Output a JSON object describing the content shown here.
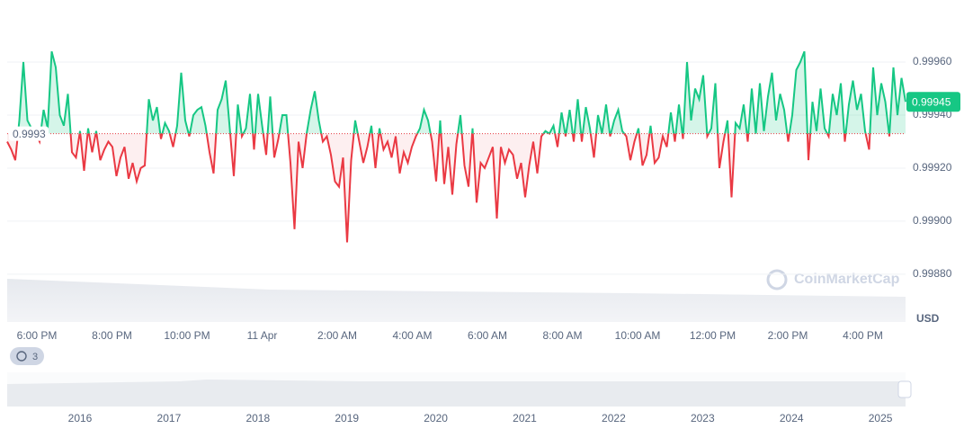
{
  "chart_data": {
    "type": "line",
    "values": [
      0.9993,
      0.99927,
      0.99923,
      0.99938,
      0.9996,
      0.99938,
      0.99935,
      0.99933,
      0.9993,
      0.99942,
      0.99935,
      0.99964,
      0.99958,
      0.9994,
      0.99936,
      0.99948,
      0.99926,
      0.99924,
      0.99934,
      0.99919,
      0.99935,
      0.99926,
      0.99934,
      0.99923,
      0.99927,
      0.9993,
      0.99928,
      0.99917,
      0.99924,
      0.99928,
      0.99916,
      0.99922,
      0.99915,
      0.9992,
      0.99921,
      0.99946,
      0.99938,
      0.99943,
      0.99931,
      0.99937,
      0.99934,
      0.99928,
      0.99936,
      0.99956,
      0.99938,
      0.99932,
      0.9994,
      0.99942,
      0.99943,
      0.99936,
      0.99926,
      0.99918,
      0.99942,
      0.99946,
      0.99953,
      0.99935,
      0.99917,
      0.99944,
      0.99932,
      0.99935,
      0.99948,
      0.99927,
      0.99948,
      0.99936,
      0.99925,
      0.99947,
      0.99924,
      0.99931,
      0.9994,
      0.9994,
      0.99922,
      0.99897,
      0.9993,
      0.9992,
      0.99933,
      0.99942,
      0.99949,
      0.99938,
      0.9993,
      0.99932,
      0.99925,
      0.99915,
      0.99913,
      0.99924,
      0.99892,
      0.99923,
      0.99938,
      0.9993,
      0.99922,
      0.99928,
      0.99936,
      0.9992,
      0.99935,
      0.99927,
      0.9993,
      0.99924,
      0.99932,
      0.99918,
      0.99926,
      0.99922,
      0.99928,
      0.99932,
      0.99935,
      0.99942,
      0.99938,
      0.9993,
      0.99915,
      0.99938,
      0.99914,
      0.99928,
      0.9991,
      0.99929,
      0.9994,
      0.99921,
      0.99913,
      0.99935,
      0.99907,
      0.99922,
      0.9992,
      0.99924,
      0.99928,
      0.99901,
      0.99928,
      0.99922,
      0.99927,
      0.99925,
      0.99916,
      0.99922,
      0.99909,
      0.99921,
      0.9993,
      0.99918,
      0.99932,
      0.99934,
      0.99933,
      0.99936,
      0.99928,
      0.99941,
      0.99932,
      0.99942,
      0.9993,
      0.99946,
      0.9993,
      0.99943,
      0.99935,
      0.99924,
      0.9994,
      0.99933,
      0.99944,
      0.99932,
      0.99938,
      0.99942,
      0.99934,
      0.99932,
      0.99923,
      0.9993,
      0.99935,
      0.99921,
      0.99925,
      0.99936,
      0.99922,
      0.99924,
      0.99932,
      0.99928,
      0.99941,
      0.9993,
      0.99944,
      0.99931,
      0.9996,
      0.99938,
      0.9995,
      0.99946,
      0.99955,
      0.99932,
      0.99935,
      0.99952,
      0.9992,
      0.9993,
      0.99938,
      0.99909,
      0.99937,
      0.99935,
      0.99944,
      0.9993,
      0.9995,
      0.99933,
      0.99952,
      0.99934,
      0.99947,
      0.99956,
      0.99938,
      0.99948,
      0.99942,
      0.9993,
      0.9994,
      0.99957,
      0.9996,
      0.99964,
      0.99923,
      0.99945,
      0.99934,
      0.9995,
      0.99935,
      0.99932,
      0.99948,
      0.9994,
      0.99952,
      0.9993,
      0.99944,
      0.99953,
      0.99942,
      0.99948,
      0.99934,
      0.99927,
      0.99958,
      0.9994,
      0.99952,
      0.99945,
      0.99932,
      0.99958,
      0.9994,
      0.99954,
      0.99945
    ],
    "up_color": "#16c784",
    "down_color": "#ea3943",
    "baseline": {
      "value": 0.99933,
      "label": "0.9993"
    },
    "current_price": 0.99945,
    "ylim": [
      0.99862,
      0.9998
    ],
    "yticks": [
      {
        "value": 0.9988,
        "label": "0.99880"
      },
      {
        "value": 0.999,
        "label": "0.99900"
      },
      {
        "value": 0.9992,
        "label": "0.99920"
      },
      {
        "value": 0.9994,
        "label": "0.99940"
      },
      {
        "value": 0.9996,
        "label": "0.99960"
      }
    ],
    "x_labels": [
      "6:00 PM",
      "8:00 PM",
      "10:00 PM",
      "11 Apr",
      "2:00 AM",
      "4:00 AM",
      "6:00 AM",
      "8:00 AM",
      "10:00 AM",
      "12:00 PM",
      "2:00 PM",
      "4:00 PM"
    ],
    "currency": "USD",
    "watermark": "CoinMarketCap",
    "badge": "3",
    "navigator_years": [
      "2016",
      "2017",
      "2018",
      "2019",
      "2020",
      "2021",
      "2022",
      "2023",
      "2024",
      "2025"
    ],
    "grid": true
  }
}
